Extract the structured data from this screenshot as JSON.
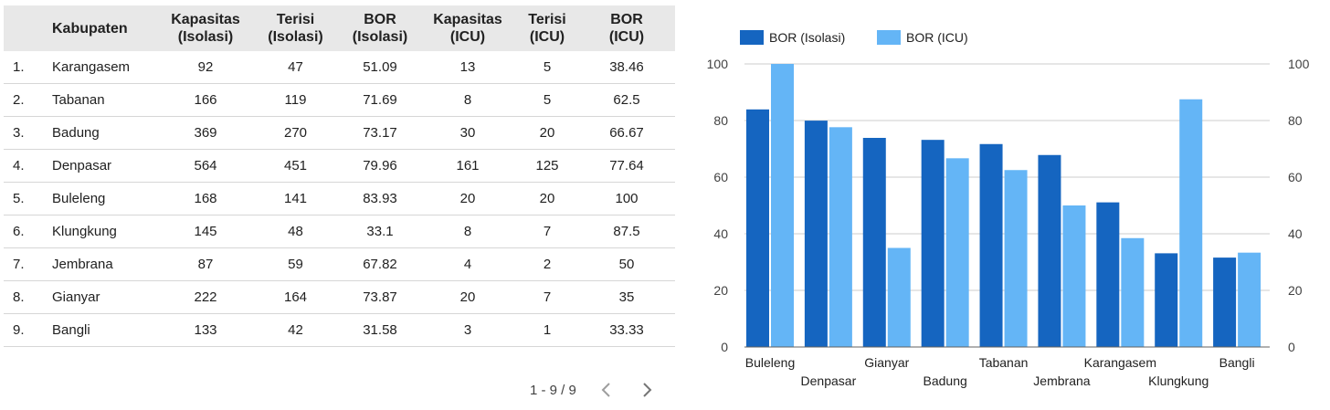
{
  "table": {
    "headers": [
      {
        "line1": "",
        "line2": ""
      },
      {
        "line1": "Kabupaten",
        "line2": ""
      },
      {
        "line1": "Kapasitas",
        "line2": "(Isolasi)"
      },
      {
        "line1": "Terisi",
        "line2": "(Isolasi)"
      },
      {
        "line1": "BOR",
        "line2": "(Isolasi)"
      },
      {
        "line1": "Kapasitas",
        "line2": "(ICU)"
      },
      {
        "line1": "Terisi",
        "line2": "(ICU)"
      },
      {
        "line1": "BOR",
        "line2": "(ICU)"
      }
    ],
    "rows": [
      [
        "1.",
        "Karangasem",
        "92",
        "47",
        "51.09",
        "13",
        "5",
        "38.46"
      ],
      [
        "2.",
        "Tabanan",
        "166",
        "119",
        "71.69",
        "8",
        "5",
        "62.5"
      ],
      [
        "3.",
        "Badung",
        "369",
        "270",
        "73.17",
        "30",
        "20",
        "66.67"
      ],
      [
        "4.",
        "Denpasar",
        "564",
        "451",
        "79.96",
        "161",
        "125",
        "77.64"
      ],
      [
        "5.",
        "Buleleng",
        "168",
        "141",
        "83.93",
        "20",
        "20",
        "100"
      ],
      [
        "6.",
        "Klungkung",
        "145",
        "48",
        "33.1",
        "8",
        "7",
        "87.5"
      ],
      [
        "7.",
        "Jembrana",
        "87",
        "59",
        "67.82",
        "4",
        "2",
        "50"
      ],
      [
        "8.",
        "Gianyar",
        "222",
        "164",
        "73.87",
        "20",
        "7",
        "35"
      ],
      [
        "9.",
        "Bangli",
        "133",
        "42",
        "31.58",
        "3",
        "1",
        "33.33"
      ]
    ]
  },
  "pagination": {
    "label": "1 - 9 / 9",
    "prev_icon": "chevron-left-icon",
    "next_icon": "chevron-right-icon"
  },
  "chart_data": {
    "type": "bar",
    "categories": [
      "Buleleng",
      "Denpasar",
      "Gianyar",
      "Badung",
      "Tabanan",
      "Jembrana",
      "Karangasem",
      "Klungkung",
      "Bangli"
    ],
    "series": [
      {
        "name": "BOR (Isolasi)",
        "color": "#1565c0",
        "values": [
          83.93,
          79.96,
          73.87,
          73.17,
          71.69,
          67.82,
          51.09,
          33.1,
          31.58
        ]
      },
      {
        "name": "BOR (ICU)",
        "color": "#64b5f6",
        "values": [
          100,
          77.64,
          35,
          66.67,
          62.5,
          50,
          38.46,
          87.5,
          33.33
        ]
      }
    ],
    "title": "",
    "xlabel": "",
    "ylabel": "",
    "ylim": [
      0,
      100
    ],
    "yticks": [
      0,
      20,
      40,
      60,
      80,
      100
    ],
    "grid": true,
    "legend_position": "top-left",
    "secondary_axis": true
  }
}
